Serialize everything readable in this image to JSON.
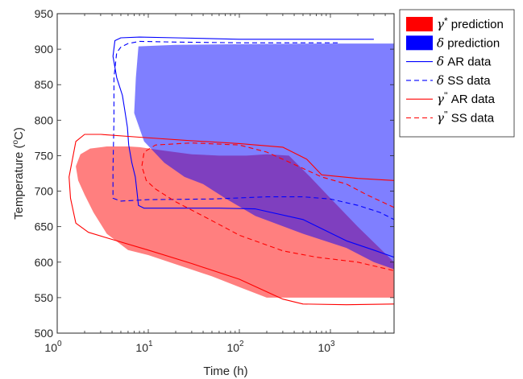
{
  "chart_data": {
    "type": "area",
    "title": "",
    "xlabel": "Time (h)",
    "ylabel": "Temperature (oC)",
    "ylabel_parts": {
      "main": "Temperature (",
      "sup": "o",
      "tail": "C)"
    },
    "xscale": "log",
    "xlim": [
      1,
      5000
    ],
    "ylim": [
      500,
      950
    ],
    "xticks": [
      {
        "value": 1,
        "base": "10",
        "exp": "0"
      },
      {
        "value": 10,
        "base": "10",
        "exp": "1"
      },
      {
        "value": 100,
        "base": "10",
        "exp": "2"
      },
      {
        "value": 1000,
        "base": "10",
        "exp": "3"
      }
    ],
    "yticks": [
      500,
      550,
      600,
      650,
      700,
      750,
      800,
      850,
      900,
      950
    ],
    "grid": false,
    "legend_position": "outside-top-right",
    "series": [
      {
        "key": "gamma_pred",
        "name": "γ* prediction",
        "legend": {
          "sym": "γ",
          "sup": "*",
          "text": " prediction"
        },
        "kind": "fill",
        "color": "#ff0000",
        "opacity": 0.5,
        "points": [
          [
            1.6,
            735
          ],
          [
            1.8,
            752
          ],
          [
            2.3,
            760
          ],
          [
            3.5,
            763
          ],
          [
            6,
            763
          ],
          [
            8,
            762
          ],
          [
            15,
            757
          ],
          [
            30,
            752
          ],
          [
            60,
            750
          ],
          [
            120,
            750
          ],
          [
            200,
            752
          ],
          [
            350,
            750
          ],
          [
            600,
            720
          ],
          [
            1000,
            690
          ],
          [
            2000,
            650
          ],
          [
            5000,
            600
          ],
          [
            5000,
            550
          ],
          [
            3000,
            550
          ],
          [
            1000,
            550
          ],
          [
            500,
            550
          ],
          [
            200,
            550
          ],
          [
            100,
            565
          ],
          [
            50,
            580
          ],
          [
            20,
            597
          ],
          [
            10,
            610
          ],
          [
            6,
            617
          ],
          [
            3.5,
            640
          ],
          [
            2.5,
            670
          ],
          [
            2,
            695
          ],
          [
            1.7,
            715
          ]
        ]
      },
      {
        "key": "delta_pred",
        "name": "δ prediction",
        "legend": {
          "sym": "δ",
          "sup": "",
          "text": " prediction"
        },
        "kind": "fill",
        "color": "#0000ff",
        "opacity": 0.5,
        "points": [
          [
            7.8,
            904
          ],
          [
            20,
            906
          ],
          [
            100,
            907
          ],
          [
            1000,
            908
          ],
          [
            5000,
            908
          ],
          [
            5000,
            590
          ],
          [
            3000,
            600
          ],
          [
            1500,
            620
          ],
          [
            500,
            640
          ],
          [
            150,
            665
          ],
          [
            70,
            690
          ],
          [
            40,
            710
          ],
          [
            25,
            720
          ],
          [
            15,
            740
          ],
          [
            9,
            770
          ],
          [
            7,
            810
          ],
          [
            7.3,
            860
          ]
        ]
      },
      {
        "key": "delta_ar",
        "name": "δ AR data",
        "legend": {
          "sym": "δ",
          "sup": "",
          "text": " AR data"
        },
        "kind": "line",
        "dash": "solid",
        "color": "#0000ff",
        "closed": false,
        "points": [
          [
            3000,
            914
          ],
          [
            100,
            914
          ],
          [
            20,
            916
          ],
          [
            8,
            917
          ],
          [
            5,
            916
          ],
          [
            4.3,
            912
          ],
          [
            4.1,
            890
          ],
          [
            4.5,
            860
          ],
          [
            5.2,
            835
          ],
          [
            5.5,
            815
          ],
          [
            5.9,
            790
          ],
          [
            6.1,
            765
          ],
          [
            6.6,
            740
          ],
          [
            7.2,
            720
          ],
          [
            7.5,
            700
          ],
          [
            7.8,
            680
          ],
          [
            9,
            676
          ],
          [
            20,
            676
          ],
          [
            60,
            676
          ],
          [
            150,
            675
          ],
          [
            500,
            660
          ],
          [
            1500,
            630
          ],
          [
            3000,
            617
          ],
          [
            5000,
            607
          ]
        ]
      },
      {
        "key": "delta_ss",
        "name": "δ SS data",
        "legend": {
          "sym": "δ",
          "sup": "",
          "text": " SS data"
        },
        "kind": "line",
        "dash": "dash",
        "color": "#0000ff",
        "closed": false,
        "points": [
          [
            1200,
            909
          ],
          [
            400,
            909
          ],
          [
            100,
            909
          ],
          [
            20,
            910
          ],
          [
            8,
            911
          ],
          [
            6,
            908
          ],
          [
            5,
            903
          ],
          [
            4.5,
            895
          ],
          [
            4.2,
            860
          ],
          [
            4.2,
            800
          ],
          [
            4.1,
            730
          ],
          [
            4.1,
            690
          ],
          [
            5,
            686
          ],
          [
            10,
            688
          ],
          [
            50,
            689
          ],
          [
            200,
            692
          ],
          [
            500,
            692
          ],
          [
            1000,
            689
          ],
          [
            2000,
            680
          ],
          [
            3500,
            670
          ],
          [
            5000,
            660
          ]
        ]
      },
      {
        "key": "gamma_ar",
        "name": "γ'' AR data",
        "legend": {
          "sym": "γ",
          "sup": "''",
          "text": " AR data"
        },
        "kind": "line",
        "dash": "solid",
        "color": "#ff0000",
        "closed": false,
        "points": [
          [
            5000,
            715
          ],
          [
            2000,
            718
          ],
          [
            800,
            723
          ],
          [
            550,
            745
          ],
          [
            300,
            762
          ],
          [
            100,
            767
          ],
          [
            30,
            771
          ],
          [
            8,
            776
          ],
          [
            3,
            780
          ],
          [
            2,
            780
          ],
          [
            1.6,
            770
          ],
          [
            1.35,
            720
          ],
          [
            1.4,
            690
          ],
          [
            1.6,
            655
          ],
          [
            2.2,
            642
          ],
          [
            4,
            632
          ],
          [
            10,
            617
          ],
          [
            30,
            598
          ],
          [
            100,
            576
          ],
          [
            300,
            548
          ],
          [
            500,
            541
          ],
          [
            1500,
            540
          ],
          [
            5000,
            541
          ]
        ]
      },
      {
        "key": "gamma_ss",
        "name": "γ'' SS data",
        "legend": {
          "sym": "γ",
          "sup": "''",
          "text": " SS data"
        },
        "kind": "line",
        "dash": "dash",
        "color": "#ff0000",
        "closed": false,
        "points": [
          [
            5000,
            677
          ],
          [
            2500,
            695
          ],
          [
            1500,
            710
          ],
          [
            800,
            720
          ],
          [
            500,
            732
          ],
          [
            300,
            745
          ],
          [
            200,
            755
          ],
          [
            100,
            765
          ],
          [
            30,
            768
          ],
          [
            12,
            765
          ],
          [
            9,
            755
          ],
          [
            8.5,
            735
          ],
          [
            9.5,
            715
          ],
          [
            12,
            703
          ],
          [
            20,
            685
          ],
          [
            40,
            665
          ],
          [
            100,
            638
          ],
          [
            300,
            616
          ],
          [
            700,
            607
          ],
          [
            2000,
            600
          ],
          [
            5000,
            588
          ]
        ]
      }
    ]
  }
}
